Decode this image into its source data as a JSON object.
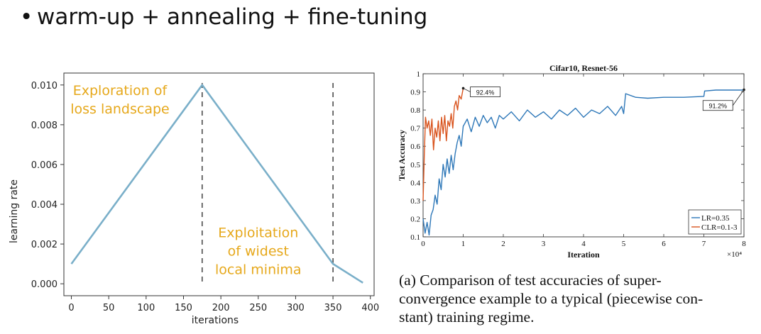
{
  "heading": {
    "bullet": "•",
    "text": "warm-up + annealing + fine-tuning"
  },
  "chart_data": [
    {
      "type": "line",
      "xlabel": "iterations",
      "ylabel": "learning rate",
      "xlim": [
        -10,
        405
      ],
      "ylim": [
        -0.0006,
        0.0106
      ],
      "x_ticks": [
        0,
        50,
        100,
        150,
        200,
        250,
        300,
        350,
        400
      ],
      "x_tick_labels": [
        "0",
        "50",
        "100",
        "150",
        "200",
        "250",
        "300",
        "350",
        "400"
      ],
      "y_ticks": [
        0.0,
        0.002,
        0.004,
        0.006,
        0.008,
        0.01
      ],
      "y_tick_labels": [
        "0.000",
        "0.002",
        "0.004",
        "0.006",
        "0.008",
        "0.010"
      ],
      "series": [
        {
          "x": [
            0,
            175,
            350,
            390
          ],
          "y": [
            0.001,
            0.01,
            0.001,
            5e-05
          ]
        }
      ],
      "vlines": [
        175,
        350
      ],
      "annotations": [
        {
          "lines": [
            "Exploration of",
            "loss landscape"
          ],
          "x": 65,
          "y": 0.0095
        },
        {
          "lines": [
            "Exploitation",
            "of widest",
            "local minima"
          ],
          "x": 250,
          "y": 0.00235
        }
      ],
      "colors": {
        "line": "#7aafc9",
        "annotation": "#e6a81b",
        "vline": "#222222"
      },
      "grid": false
    },
    {
      "type": "line",
      "title": "Cifar10, Resnet-56",
      "xlabel": "Iteration",
      "ylabel": "Test Accuracy",
      "x_multiplier_label": "×10⁴",
      "xlim": [
        0,
        8
      ],
      "ylim": [
        0.1,
        1.0
      ],
      "x_ticks": [
        0,
        1,
        2,
        3,
        4,
        5,
        6,
        7,
        8
      ],
      "x_tick_labels": [
        "0",
        "1",
        "2",
        "3",
        "4",
        "5",
        "6",
        "7",
        "8"
      ],
      "y_ticks": [
        0.1,
        0.2,
        0.3,
        0.4,
        0.5,
        0.6,
        0.7,
        0.8,
        0.9,
        1.0
      ],
      "y_tick_labels": [
        "0.1",
        "0.2",
        "0.3",
        "0.4",
        "0.5",
        "0.6",
        "0.7",
        "0.8",
        "0.9",
        "1"
      ],
      "series": [
        {
          "name": "LR=0.35",
          "color": "#2d77b8",
          "x": [
            0,
            0.05,
            0.1,
            0.15,
            0.2,
            0.25,
            0.3,
            0.35,
            0.4,
            0.45,
            0.5,
            0.55,
            0.6,
            0.65,
            0.7,
            0.75,
            0.8,
            0.85,
            0.9,
            0.95,
            1.0,
            1.1,
            1.2,
            1.3,
            1.4,
            1.5,
            1.6,
            1.7,
            1.8,
            1.9,
            2.0,
            2.2,
            2.4,
            2.6,
            2.8,
            3.0,
            3.2,
            3.4,
            3.6,
            3.8,
            4.0,
            4.2,
            4.4,
            4.6,
            4.8,
            4.95,
            5.0,
            5.05,
            5.3,
            5.6,
            6.0,
            6.5,
            7.0,
            7.02,
            7.3,
            7.6,
            8.0
          ],
          "y": [
            0.2,
            0.12,
            0.18,
            0.11,
            0.22,
            0.25,
            0.33,
            0.28,
            0.42,
            0.36,
            0.5,
            0.43,
            0.53,
            0.45,
            0.55,
            0.47,
            0.56,
            0.62,
            0.66,
            0.6,
            0.71,
            0.75,
            0.68,
            0.76,
            0.71,
            0.77,
            0.73,
            0.76,
            0.7,
            0.77,
            0.75,
            0.79,
            0.74,
            0.8,
            0.76,
            0.79,
            0.75,
            0.8,
            0.77,
            0.81,
            0.76,
            0.8,
            0.78,
            0.82,
            0.77,
            0.82,
            0.78,
            0.89,
            0.87,
            0.865,
            0.87,
            0.87,
            0.875,
            0.905,
            0.91,
            0.91,
            0.91
          ]
        },
        {
          "name": "CLR=0.1-3",
          "color": "#d9541e",
          "x": [
            0,
            0.03,
            0.06,
            0.1,
            0.14,
            0.18,
            0.22,
            0.26,
            0.3,
            0.34,
            0.38,
            0.42,
            0.46,
            0.5,
            0.54,
            0.58,
            0.62,
            0.66,
            0.7,
            0.74,
            0.78,
            0.82,
            0.86,
            0.9,
            0.95,
            1.0
          ],
          "y": [
            0.3,
            0.55,
            0.76,
            0.7,
            0.74,
            0.66,
            0.75,
            0.58,
            0.7,
            0.65,
            0.74,
            0.63,
            0.76,
            0.67,
            0.77,
            0.63,
            0.74,
            0.71,
            0.78,
            0.7,
            0.82,
            0.85,
            0.8,
            0.88,
            0.86,
            0.92
          ]
        }
      ],
      "annotations": [
        {
          "text": "92.4%",
          "x": 1.0,
          "y": 0.92,
          "box_x": 1.55,
          "box_y": 0.9
        },
        {
          "text": "91.2%",
          "x": 8.0,
          "y": 0.912,
          "box_x": 7.35,
          "box_y": 0.825
        }
      ],
      "legend": "bottom-right",
      "grid": false
    }
  ],
  "caption": {
    "lines": [
      "(a) Comparison of test accuracies of super-",
      "convergence example to a typical (piecewise con-",
      "stant) training regime."
    ]
  }
}
